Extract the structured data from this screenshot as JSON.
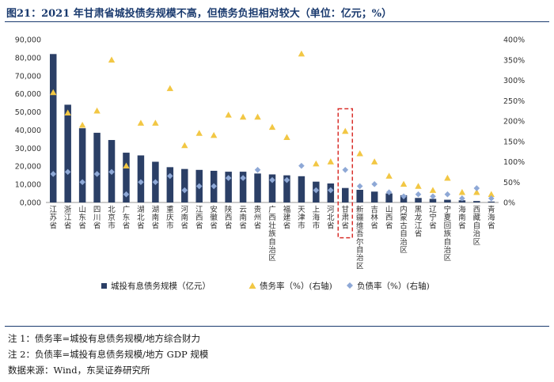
{
  "title": "图21：2021 年甘肃省城投债务规模不高，但债务负担相对较大（单位：亿元；%）",
  "notes": [
    "注 1：债务率=城投有息债务规模/地方综合财力",
    "注 2：负债率=城投有息债务规模/地方 GDP 规模",
    "数据来源：Wind，东吴证券研究所"
  ],
  "colors": {
    "bar": "#2b3f66",
    "debt_ratio": "#f2c744",
    "liability_ratio": "#8ea8d6",
    "highlight": "#d9302b"
  },
  "chart_data": {
    "type": "bar",
    "categories": [
      "江苏省",
      "浙江省",
      "山东省",
      "四川省",
      "北京市",
      "广东省",
      "湖北省",
      "湖南省",
      "重庆市",
      "河南省",
      "江西省",
      "安徽省",
      "陕西省",
      "云南省",
      "贵州省",
      "广西壮族自治区",
      "福建省",
      "天津市",
      "上海市",
      "河北省",
      "甘肃省",
      "新疆维吾尔自治区",
      "吉林省",
      "山西省",
      "内蒙古自治区",
      "黑龙江省",
      "辽宁省",
      "宁夏回族自治区",
      "海南省",
      "西藏自治区",
      "青海省"
    ],
    "highlight_category": "甘肃省",
    "series": [
      {
        "name": "城投有息债务规模（亿元）",
        "type": "bar",
        "axis": "left",
        "values": [
          82000,
          54000,
          41000,
          38500,
          34500,
          27500,
          26000,
          22500,
          19500,
          18500,
          18000,
          17500,
          17000,
          17000,
          16000,
          15500,
          15000,
          14500,
          11500,
          10500,
          8000,
          7000,
          6000,
          5000,
          4000,
          2500,
          2000,
          1500,
          1200,
          800,
          500
        ]
      },
      {
        "name": "债务率（%）(右轴)",
        "type": "scatter",
        "marker": "triangle",
        "axis": "right",
        "values": [
          270,
          220,
          190,
          225,
          350,
          90,
          195,
          195,
          280,
          140,
          170,
          165,
          215,
          210,
          210,
          185,
          160,
          365,
          95,
          100,
          175,
          120,
          100,
          65,
          45,
          40,
          30,
          60,
          25,
          25,
          20
        ]
      },
      {
        "name": "负债率（%）(右轴)",
        "type": "scatter",
        "marker": "diamond",
        "axis": "right",
        "values": [
          70,
          75,
          50,
          70,
          75,
          20,
          50,
          50,
          65,
          30,
          40,
          40,
          60,
          60,
          80,
          55,
          55,
          90,
          30,
          30,
          80,
          40,
          45,
          25,
          15,
          20,
          15,
          20,
          10,
          35,
          10
        ]
      }
    ],
    "y_left": {
      "min": 0,
      "max": 90000,
      "step": 10000,
      "tick_labels": [
        "0,000",
        "10,000",
        "20,000",
        "30,000",
        "40,000",
        "50,000",
        "60,000",
        "70,000",
        "80,000",
        "90,000"
      ]
    },
    "y_right": {
      "min": 0,
      "max": 400,
      "step": 50,
      "tick_labels": [
        "0%",
        "50%",
        "100%",
        "150%",
        "200%",
        "250%",
        "300%",
        "350%",
        "400%"
      ]
    },
    "legend": {
      "position": "bottom",
      "labels": [
        "城投有息债务规模（亿元）",
        "债务率（%）(右轴)",
        "负债率（%）(右轴)"
      ]
    },
    "grid": false
  }
}
